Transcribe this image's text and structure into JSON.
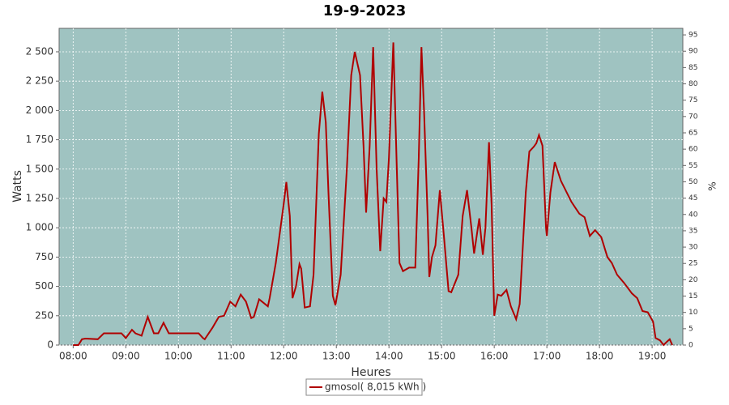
{
  "chart_data": {
    "type": "line",
    "title": "19-9-2023",
    "x_label": "Heures",
    "y_label": "Watts",
    "y2_label": "%",
    "x": [
      480,
      486,
      490,
      494,
      508,
      515,
      535,
      540,
      547,
      551,
      558,
      565,
      572,
      577,
      583,
      589,
      623,
      628,
      630,
      639,
      646,
      652,
      659,
      665,
      671,
      677,
      683,
      686,
      692,
      702,
      704,
      711,
      720,
      723,
      727,
      730,
      734,
      738,
      740,
      744,
      750,
      754,
      760,
      764,
      768,
      771,
      776,
      779,
      785,
      792,
      797,
      801,
      807,
      811,
      814,
      818,
      822,
      826,
      830,
      834,
      837,
      840,
      845,
      849,
      852,
      856,
      863,
      870,
      874,
      877,
      880,
      884,
      886,
      889,
      893,
      898,
      903,
      908,
      911,
      919,
      924,
      929,
      934,
      937,
      943,
      947,
      950,
      954,
      957,
      960,
      964,
      968,
      974,
      979,
      985,
      989,
      996,
      1000,
      1005,
      1008,
      1011,
      1015,
      1019,
      1020,
      1024,
      1029,
      1036,
      1048,
      1057,
      1063,
      1069,
      1075,
      1082,
      1089,
      1094,
      1100,
      1108,
      1117,
      1123,
      1129,
      1135,
      1141,
      1144,
      1149,
      1153,
      1157,
      1160,
      1163
    ],
    "series": [
      {
        "name": "gmosol( 8,015 kWh )",
        "color": "#b00000",
        "values": [
          0,
          0,
          50,
          55,
          50,
          100,
          100,
          60,
          130,
          100,
          80,
          240,
          100,
          100,
          190,
          100,
          100,
          60,
          50,
          150,
          240,
          250,
          370,
          330,
          430,
          370,
          230,
          240,
          390,
          330,
          400,
          700,
          1200,
          1390,
          1100,
          400,
          500,
          690,
          650,
          320,
          330,
          600,
          1800,
          2160,
          1900,
          1300,
          420,
          340,
          600,
          1500,
          2300,
          2500,
          2300,
          1700,
          1130,
          1700,
          2540,
          1500,
          800,
          1250,
          1220,
          1600,
          2580,
          1500,
          700,
          630,
          660,
          660,
          1600,
          2540,
          2000,
          1100,
          580,
          750,
          850,
          1320,
          900,
          460,
          450,
          600,
          1100,
          1320,
          1000,
          780,
          1080,
          770,
          1000,
          1730,
          1200,
          250,
          430,
          420,
          470,
          330,
          220,
          350,
          1300,
          1650,
          1690,
          1720,
          1790,
          1700,
          1000,
          930,
          1300,
          1560,
          1400,
          1220,
          1120,
          1090,
          930,
          980,
          920,
          750,
          700,
          600,
          530,
          440,
          400,
          290,
          280,
          200,
          60,
          40,
          0,
          30,
          50,
          0
        ]
      }
    ],
    "xlim": [
      464,
      1175
    ],
    "xticks": [
      {
        "value": 480,
        "label": "08:00"
      },
      {
        "value": 540,
        "label": "09:00"
      },
      {
        "value": 600,
        "label": "10:00"
      },
      {
        "value": 660,
        "label": "11:00"
      },
      {
        "value": 720,
        "label": "12:00"
      },
      {
        "value": 780,
        "label": "13:00"
      },
      {
        "value": 840,
        "label": "14:00"
      },
      {
        "value": 900,
        "label": "15:00"
      },
      {
        "value": 960,
        "label": "16:00"
      },
      {
        "value": 1020,
        "label": "17:00"
      },
      {
        "value": 1080,
        "label": "18:00"
      },
      {
        "value": 1140,
        "label": "19:00"
      }
    ],
    "ylim": [
      0,
      2700
    ],
    "yticks": [
      0,
      250,
      500,
      750,
      {
        "value": 1000,
        "label": "1 000"
      },
      {
        "value": 1250,
        "label": "1 250"
      },
      {
        "value": 1500,
        "label": "1 500"
      },
      {
        "value": 1750,
        "label": "1 750"
      },
      {
        "value": 2000,
        "label": "2 000"
      },
      {
        "value": 2250,
        "label": "2 250"
      },
      {
        "value": 2500,
        "label": "2 500"
      }
    ],
    "y2lim": [
      0,
      97
    ],
    "y2ticks": [
      0,
      5,
      10,
      15,
      20,
      25,
      30,
      35,
      40,
      45,
      50,
      55,
      60,
      65,
      70,
      75,
      80,
      85,
      90,
      95
    ],
    "grid": true,
    "background": "#9fc3c1"
  }
}
